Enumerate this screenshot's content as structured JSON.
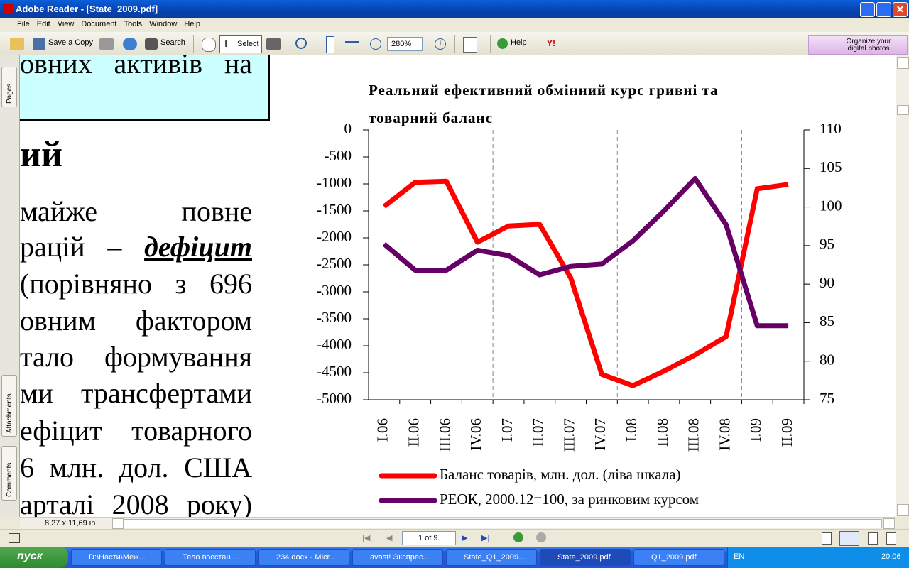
{
  "window": {
    "title": "Adobe Reader - [State_2009.pdf]"
  },
  "menu": [
    "File",
    "Edit",
    "View",
    "Document",
    "Tools",
    "Window",
    "Help"
  ],
  "toolbar": {
    "save_copy": "Save a Copy",
    "search": "Search",
    "select": "Select",
    "zoom": "280%",
    "help": "Help",
    "promo": [
      "Organize your",
      "digital photos"
    ]
  },
  "side_tabs": [
    "Pages",
    "Attachments",
    "Comments"
  ],
  "document": {
    "box_line": "овних активів на",
    "heading": "ий",
    "body_lines": [
      "майже повне",
      [
        "рацій –",
        "дефіцит"
      ],
      "(порівняно з 696",
      "овним фактором",
      "тало формування",
      "ми трансфертами",
      "ефіцит товарного",
      "6 млн. дол. США",
      "арталі 2008 року)"
    ]
  },
  "chart_data": {
    "type": "line",
    "title": "Реальний ефективний обмінний курс гривні та товарний баланс",
    "categories": [
      "I.06",
      "II.06",
      "III.06",
      "IV.06",
      "I.07",
      "II.07",
      "III.07",
      "IV.07",
      "I.08",
      "II.08",
      "III.08",
      "IV.08",
      "I.09",
      "II.09"
    ],
    "series": [
      {
        "name": "Баланс товарів, млн. дол. (ліва шкала)",
        "color": "#ff0000",
        "values": [
          -1420,
          -970,
          -950,
          -2080,
          -1780,
          -1750,
          -2740,
          -4530,
          -4740,
          -4470,
          -4170,
          -3830,
          -1090,
          -1010
        ]
      },
      {
        "name": "РЕОК, 2000.12=100, за ринковим курсом",
        "color": "#660066",
        "axis": "y2",
        "values": [
          95.2,
          91.8,
          91.8,
          94.4,
          93.7,
          91.2,
          92.3,
          92.6,
          95.6,
          99.5,
          103.7,
          97.7,
          84.6,
          84.6
        ]
      }
    ],
    "ylim": [
      -5000,
      0
    ],
    "yticks": [
      0,
      -500,
      -1000,
      -1500,
      -2000,
      -2500,
      -3000,
      -3500,
      -4000,
      -4500,
      -5000
    ],
    "y2lim": [
      75,
      110
    ],
    "y2ticks": [
      110,
      105,
      100,
      95,
      90,
      85,
      80,
      75
    ]
  },
  "status": {
    "page_size": "8,27 x 11,69 in",
    "page": "1 of 9"
  },
  "taskbar": {
    "start": "пуск",
    "items": [
      "D:\\Насти\\Меж...",
      "Тело восстан....",
      "234.docx - Micr...",
      "avast! Экспрес...",
      "State_Q1_2009....",
      "State_2009.pdf",
      "Q1_2009.pdf"
    ],
    "lang": "EN",
    "clock": "20:06"
  }
}
